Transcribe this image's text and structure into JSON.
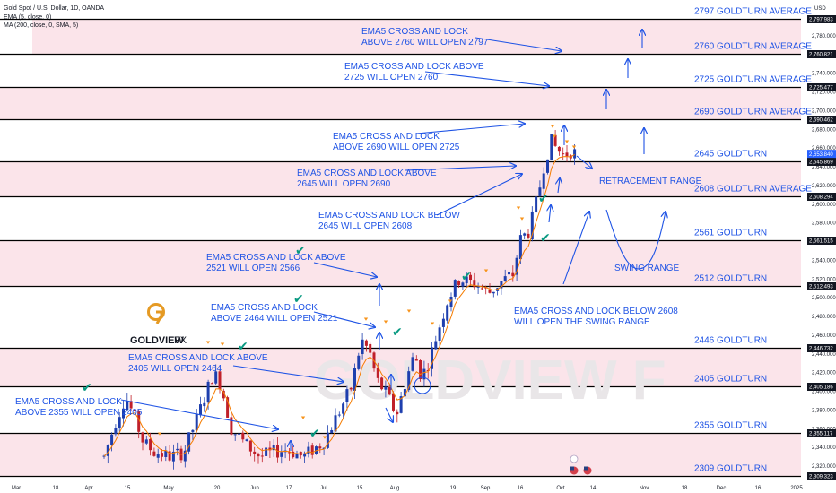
{
  "header": {
    "symbol": "Gold Spot / U.S. Dollar, 1D, OANDA",
    "ema": "EMA (5, close, 0)",
    "ma": "MA (200, close, 0, SMA, 5)",
    "currency": "USD"
  },
  "logo": {
    "letter": "G",
    "name": "GOLDVIEW",
    "suffix": "FX"
  },
  "watermark": "GOLDVIEW F",
  "colors": {
    "bg": "#ffffff",
    "zone": "#fbe4ea",
    "level_line": "#000000",
    "annotation": "#1e53e5",
    "bull": "#1e3fae",
    "bear": "#c0202a",
    "ema": "#f57c00",
    "check": "#089981",
    "triangle": "#f7931a"
  },
  "chart_data": {
    "type": "candlestick",
    "ylim": [
      2309,
      2800
    ],
    "x_tick_labels": [
      "Mar",
      "18",
      "Apr",
      "15",
      "May",
      "20",
      "Jun",
      "17",
      "Jul",
      "15",
      "Aug",
      "19",
      "Sep",
      "16",
      "Oct",
      "14",
      "Nov",
      "18",
      "Dec",
      "16",
      "2025"
    ],
    "y_tick_labels": [
      "2,320.000",
      "2,340.000",
      "2,360.000",
      "2,380.000",
      "2,400.000",
      "2,420.000",
      "2,440.000",
      "2,460.000",
      "2,480.000",
      "2,500.000",
      "2,520.000",
      "2,540.000",
      "2,560.000",
      "2,580.000",
      "2,600.000",
      "2,620.000",
      "2,640.000",
      "2,660.000",
      "2,680.000",
      "2,700.000",
      "2,720.000",
      "2,740.000",
      "2,760.000",
      "2,780.000"
    ],
    "levels": [
      {
        "price": 2797.983,
        "tag": "2,797.983",
        "label": "2797 GOLDTURN AVERAGE"
      },
      {
        "price": 2760.821,
        "tag": "2,760.821",
        "label": "2760 GOLDTURN AVERAGE"
      },
      {
        "price": 2725.477,
        "tag": "2,725.477",
        "label": "2725 GOLDTURN AVERAGE"
      },
      {
        "price": 2690.462,
        "tag": "2,690.462",
        "label": "2690 GOLDTURN AVERAGE"
      },
      {
        "price": 2645.869,
        "tag": "2,645.869",
        "label": "2645 GOLDTURN"
      },
      {
        "price": 2608.294,
        "tag": "2,608.294",
        "label": "2608 GOLDTURN AVERAGE"
      },
      {
        "price": 2561.515,
        "tag": "2,561.515",
        "label": "2561 GOLDTURN"
      },
      {
        "price": 2512.493,
        "tag": "2,512.493",
        "label": "2512 GOLDTURN"
      },
      {
        "price": 2446.732,
        "tag": "2,446.732",
        "label": "2446 GOLDTURN"
      },
      {
        "price": 2405.186,
        "tag": "2,405.186",
        "label": "2405 GOLDTURN"
      },
      {
        "price": 2355.117,
        "tag": "2,355.117",
        "label": "2355 GOLDTURN"
      },
      {
        "price": 2309.323,
        "tag": "2,309.323",
        "label": "2309 GOLDTURN"
      }
    ],
    "last_price": {
      "value": 2653.84,
      "tag": "2,653.840"
    },
    "annotations": [
      {
        "lines": [
          "EMA5 CROSS AND LOCK",
          "ABOVE 2760 WILL OPEN 2797"
        ]
      },
      {
        "lines": [
          "EMA5 CROSS AND LOCK ABOVE",
          "2725  WILL OPEN 2760"
        ]
      },
      {
        "lines": [
          "EMA5 CROSS AND LOCK",
          "ABOVE 2690 WILL OPEN 2725"
        ]
      },
      {
        "lines": [
          "EMA5 CROSS AND LOCK ABOVE",
          "2645 WILL OPEN 2690"
        ]
      },
      {
        "lines": [
          "EMA5 CROSS AND LOCK BELOW",
          "2645 WILL OPEN 2608"
        ]
      },
      {
        "lines": [
          "EMA5 CROSS AND LOCK ABOVE",
          "2521 WILL OPEN 2566"
        ]
      },
      {
        "lines": [
          "EMA5 CROSS AND LOCK",
          "ABOVE 2464 WILL OPEN 2521"
        ]
      },
      {
        "lines": [
          "EMA5 CROSS AND LOCK ABOVE",
          "2405 WILL OPEN 2464"
        ]
      },
      {
        "lines": [
          "EMA5 CROSS AND LOCK",
          "ABOVE 2355 WILL OPEN 2405"
        ]
      },
      {
        "lines": [
          "EMA5 CROSS AND LOCK BELOW 2608",
          "WILL OPEN THE SWING RANGE"
        ]
      }
    ],
    "range_labels": {
      "retracement": "RETRACEMENT RANGE",
      "swing": "SWING RANGE"
    }
  }
}
